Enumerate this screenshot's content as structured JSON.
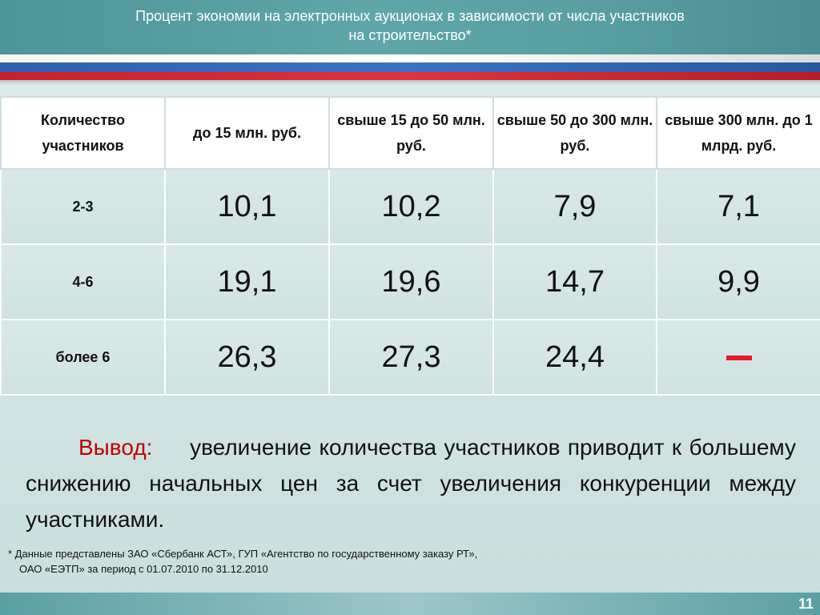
{
  "slide": {
    "title_line1": "Процент экономии на электронных аукционах в зависимости от числа участников",
    "title_line2": "на строительство*",
    "page_number": "11"
  },
  "table": {
    "headers": [
      "Количество участников",
      "до 15 млн. руб.",
      "свыше 15 до 50 млн. руб.",
      "свыше 50 до 300 млн. руб.",
      "свыше 300 млн. до 1 млрд. руб."
    ],
    "rows": [
      {
        "label": "2-3",
        "values": [
          "10,1",
          "10,2",
          "7,9",
          "7,1"
        ]
      },
      {
        "label": "4-6",
        "values": [
          "19,1",
          "19,6",
          "14,7",
          "9,9"
        ]
      },
      {
        "label": "более 6",
        "values": [
          "26,3",
          "27,3",
          "24,4",
          "–"
        ]
      }
    ]
  },
  "conclusion": {
    "label": "Вывод:",
    "text": "увеличение количества участников приводит к большему снижению  начальных цен за счет увеличения конкуренции между участниками."
  },
  "footnote": {
    "line1": "* Данные представлены  ЗАО «Сбербанк  АСТ», ГУП «Агентство по государственному заказу РТ»,",
    "line2": "ОАО «ЕЭТП» за период с 01.07.2010 по 31.12.2010"
  },
  "colors": {
    "header_teal": "#5ea6a8",
    "flag_blue": "#3a72c6",
    "flag_red": "#e0323a",
    "conclusion_label": "#c00000",
    "dash_red": "#e01b24"
  }
}
